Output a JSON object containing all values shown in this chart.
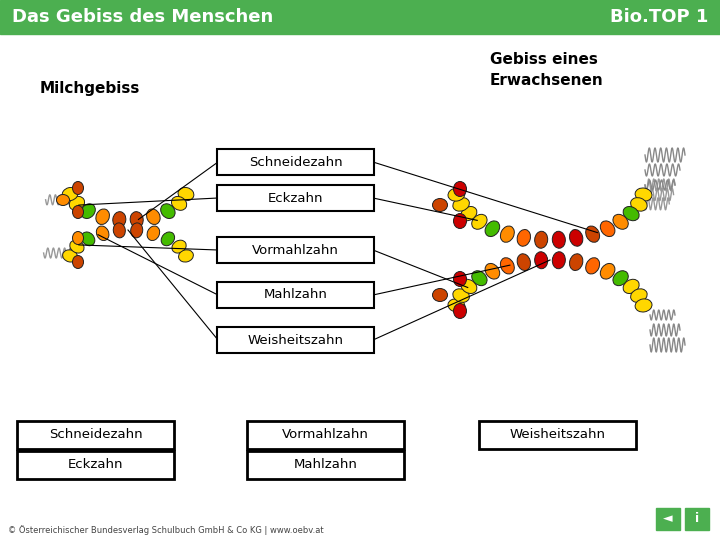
{
  "header_bg": "#4CAF50",
  "header_text_left": "Das Gebiss des Menschen",
  "header_text_right": "Bio.TOP 1",
  "header_text_color": "#ffffff",
  "bg_color": "#ffffff",
  "title_milch": "Milchgebiss",
  "title_erwachsen": "Gebiss eines\nErwachsenen",
  "labels_center": [
    "Schneidezahn",
    "Eckzahn",
    "Vormahlzahn",
    "Mahlzahn",
    "Weisheitszahn"
  ],
  "legend_row1": [
    "Schneidezahn",
    "Vormahlzahn",
    "Weisheitszahn"
  ],
  "legend_row2": [
    "Eckzahn",
    "Mahlzahn"
  ],
  "footer": "© Österreichischer Bundesverlag Schulbuch GmbH & Co KG | www.oebv.at",
  "tooth_colors": {
    "yellow": "#FFD700",
    "orange": "#FF8C00",
    "dark_orange": "#CC4400",
    "red": "#CC0000",
    "green": "#44BB00",
    "light_orange": "#FF6600"
  },
  "milch_upper_colors": [
    "#FFD700",
    "#FFD700",
    "#44BB00",
    "#FF8C00",
    "#CC4400",
    "#CC4400",
    "#FF8C00",
    "#44BB00",
    "#FFD700",
    "#FFD700"
  ],
  "milch_lower_colors": [
    "#FFD700",
    "#FFD700",
    "#44BB00",
    "#FF8C00",
    "#CC4400",
    "#CC4400",
    "#FF8C00",
    "#44BB00",
    "#FFD700",
    "#FFD700"
  ],
  "adult_upper_colors": [
    "#FFD700",
    "#FFD700",
    "#44BB00",
    "#FF8C00",
    "#FF6600",
    "#CC4400",
    "#CC0000",
    "#CC0000",
    "#CC4400",
    "#FF6600",
    "#FF8C00",
    "#44BB00",
    "#FFD700",
    "#FFD700",
    "#FFD700",
    "#FFD700"
  ],
  "adult_lower_colors": [
    "#FFD700",
    "#FFD700",
    "#FFD700",
    "#44BB00",
    "#FF8C00",
    "#FF6600",
    "#CC4400",
    "#CC0000",
    "#CC0000",
    "#CC4400",
    "#FF6600",
    "#FF8C00",
    "#44BB00",
    "#FFD700",
    "#FFD700",
    "#FFD700"
  ]
}
